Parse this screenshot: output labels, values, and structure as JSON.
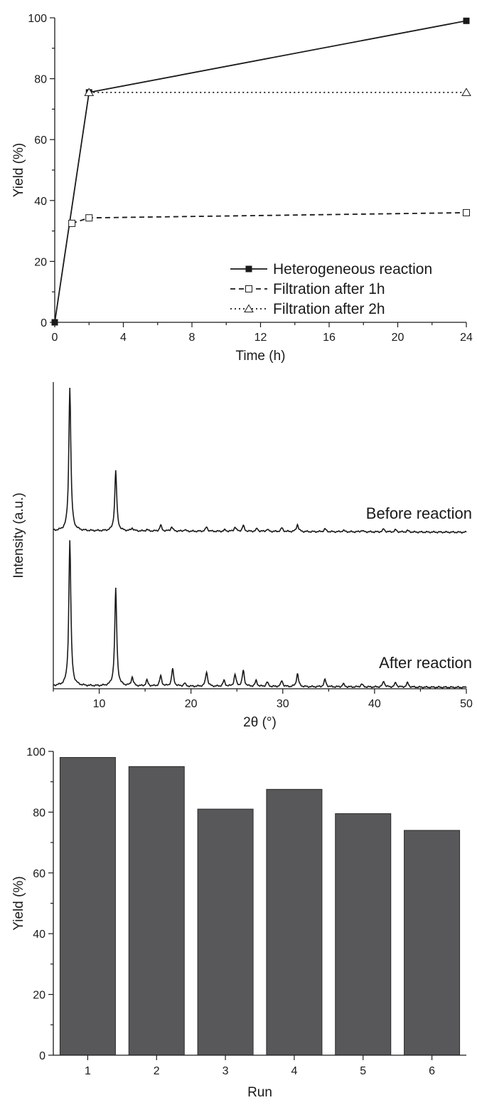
{
  "chart_data": [
    {
      "type": "line",
      "xlabel": "Time (h)",
      "ylabel": "Yield (%)",
      "xlim": [
        0,
        24
      ],
      "ylim": [
        0,
        100
      ],
      "xticks": [
        0,
        4,
        8,
        12,
        16,
        20,
        24
      ],
      "yticks": [
        0,
        20,
        40,
        60,
        80,
        100
      ],
      "grid": false,
      "legend_position": "bottom-right",
      "series": [
        {
          "name": "Heterogeneous reaction",
          "style": "solid",
          "marker": "filled-square",
          "x": [
            0,
            2,
            24
          ],
          "y": [
            0,
            75.5,
            99
          ]
        },
        {
          "name": "Filtration after 1h",
          "style": "dashed",
          "marker": "open-square",
          "x": [
            1,
            2,
            24
          ],
          "y": [
            32.5,
            34.3,
            36
          ]
        },
        {
          "name": "Filtration after 2h",
          "style": "dotted",
          "marker": "open-triangle",
          "x": [
            2,
            24
          ],
          "y": [
            75.5,
            75.5
          ]
        }
      ]
    },
    {
      "type": "line",
      "xlabel": "2θ (°)",
      "ylabel": "Intensity (a.u.)",
      "xlim": [
        5,
        50
      ],
      "xticks": [
        10,
        20,
        30,
        40,
        50
      ],
      "yticks_shown": false,
      "series": [
        {
          "name": "Before reaction",
          "baseline": 0,
          "peaks": [
            [
              6.8,
              100
            ],
            [
              11.8,
              42
            ],
            [
              13.6,
              2
            ],
            [
              15.2,
              1
            ],
            [
              16.7,
              4
            ],
            [
              17.9,
              3
            ],
            [
              19.3,
              1
            ],
            [
              21.7,
              3
            ],
            [
              23.7,
              1
            ],
            [
              24.8,
              3
            ],
            [
              25.7,
              4
            ],
            [
              27.2,
              2
            ],
            [
              28.3,
              1.5
            ],
            [
              29.9,
              2.5
            ],
            [
              31.6,
              5
            ],
            [
              34.6,
              2
            ],
            [
              36.6,
              1
            ],
            [
              38.6,
              1
            ],
            [
              41.0,
              2
            ],
            [
              42.3,
              1.5
            ],
            [
              43.6,
              1
            ]
          ]
        },
        {
          "name": "After reaction",
          "baseline": 0,
          "peaks": [
            [
              6.8,
              100
            ],
            [
              11.8,
              67
            ],
            [
              13.6,
              6
            ],
            [
              15.2,
              4
            ],
            [
              16.7,
              7
            ],
            [
              18.0,
              12
            ],
            [
              19.3,
              2
            ],
            [
              21.7,
              10
            ],
            [
              23.6,
              4
            ],
            [
              24.8,
              8
            ],
            [
              25.7,
              11
            ],
            [
              27.1,
              4
            ],
            [
              28.3,
              3
            ],
            [
              29.9,
              4
            ],
            [
              31.6,
              9
            ],
            [
              34.6,
              5
            ],
            [
              36.6,
              2
            ],
            [
              38.6,
              2
            ],
            [
              41.0,
              4
            ],
            [
              42.3,
              3
            ],
            [
              43.6,
              3
            ]
          ]
        }
      ]
    },
    {
      "type": "bar",
      "xlabel": "Run",
      "ylabel": "Yield (%)",
      "categories": [
        "1",
        "2",
        "3",
        "4",
        "5",
        "6"
      ],
      "values": [
        98,
        95,
        81,
        87.5,
        79.5,
        74
      ],
      "ylim": [
        0,
        100
      ],
      "yticks": [
        0,
        20,
        40,
        60,
        80,
        100
      ],
      "bar_color": "#58585a",
      "grid": false
    }
  ]
}
